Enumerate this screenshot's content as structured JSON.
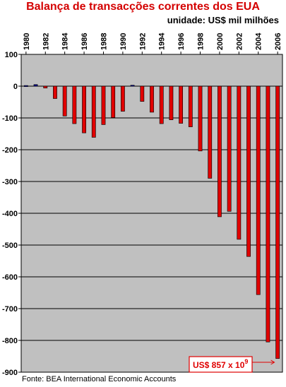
{
  "colors": {
    "title": "#d40000",
    "plot_bg": "#c0c0c0",
    "negative_bar": "#e00000",
    "positive_bar": "#00008b",
    "grid": "#000000",
    "annotation": "#e00000"
  },
  "chart_data": {
    "type": "bar",
    "title": "Balança de transacções correntes dos EUA",
    "subtitle": "unidade: US$ mil milhões",
    "source": "Fonte: BEA International Economic Accounts",
    "categories": [
      "1980",
      "1981",
      "1982",
      "1983",
      "1984",
      "1985",
      "1986",
      "1987",
      "1988",
      "1989",
      "1990",
      "1991",
      "1992",
      "1993",
      "1994",
      "1995",
      "1996",
      "1997",
      "1998",
      "1999",
      "2000",
      "2001",
      "2002",
      "2003",
      "2004",
      "2005",
      "2006"
    ],
    "x_tick_labels": [
      "1980",
      "1982",
      "1984",
      "1986",
      "1988",
      "1990",
      "1992",
      "1994",
      "1996",
      "1998",
      "2000",
      "2002",
      "2004",
      "2006"
    ],
    "values": [
      2,
      5,
      -6,
      -39,
      -94,
      -118,
      -147,
      -161,
      -121,
      -99,
      -79,
      3,
      -48,
      -82,
      -118,
      -106,
      -117,
      -128,
      -204,
      -290,
      -411,
      -394,
      -482,
      -536,
      -656,
      -805,
      -857
    ],
    "ylim": [
      -900,
      100
    ],
    "y_ticks": [
      100,
      0,
      -100,
      -200,
      -300,
      -400,
      -500,
      -600,
      -700,
      -800,
      -900
    ],
    "grid": "horizontal",
    "annotation": {
      "category": "2006",
      "text_main": "US$ 857 x 10",
      "text_sup": "9"
    }
  }
}
